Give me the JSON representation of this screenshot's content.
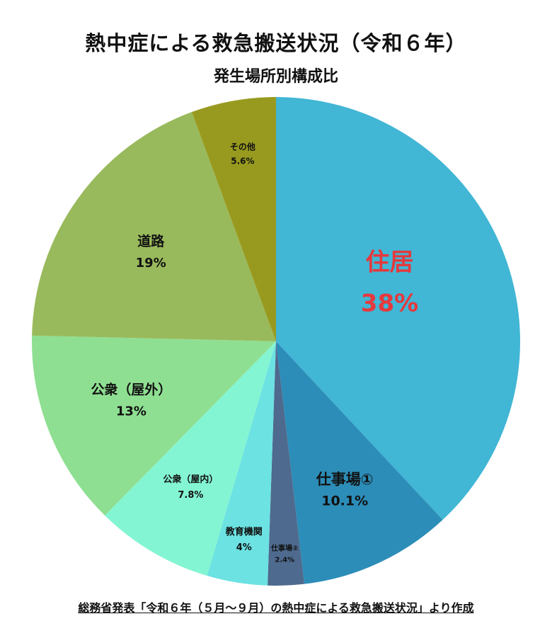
{
  "title": "熱中症による救急搬送状況（令和６年）",
  "subtitle": "発生場所別構成比",
  "source": "総務省発表「令和６年（５月～９月）の熱中症による救急搬送状況」より作成",
  "chart_data": {
    "type": "pie",
    "start": "12 o'clock",
    "direction": "clockwise",
    "slices": [
      {
        "label": "住居",
        "value_label": "38%",
        "value": 38,
        "color": "#41b6d5",
        "label_color": "#e5393d"
      },
      {
        "label": "仕事場①",
        "value_label": "10.1%",
        "value": 10.1,
        "color": "#2c8db8",
        "label_color": "#111111"
      },
      {
        "label": "仕事場②",
        "value_label": "2.4%",
        "value": 2.4,
        "color": "#4e6a8e",
        "label_color": "#111111"
      },
      {
        "label": "教育機関",
        "value_label": "4%",
        "value": 4,
        "color": "#6ce2e2",
        "label_color": "#111111"
      },
      {
        "label": "公衆（屋内）",
        "value_label": "7.8%",
        "value": 7.8,
        "color": "#84f5d2",
        "label_color": "#111111"
      },
      {
        "label": "公衆（屋外）",
        "value_label": "13%",
        "value": 13,
        "color": "#8fdf92",
        "label_color": "#111111"
      },
      {
        "label": "道路",
        "value_label": "19%",
        "value": 19,
        "color": "#99ba5c",
        "label_color": "#111111"
      },
      {
        "label": "その他",
        "value_label": "5.6%",
        "value": 5.6,
        "color": "#989a1f",
        "label_color": "#111111"
      }
    ]
  }
}
